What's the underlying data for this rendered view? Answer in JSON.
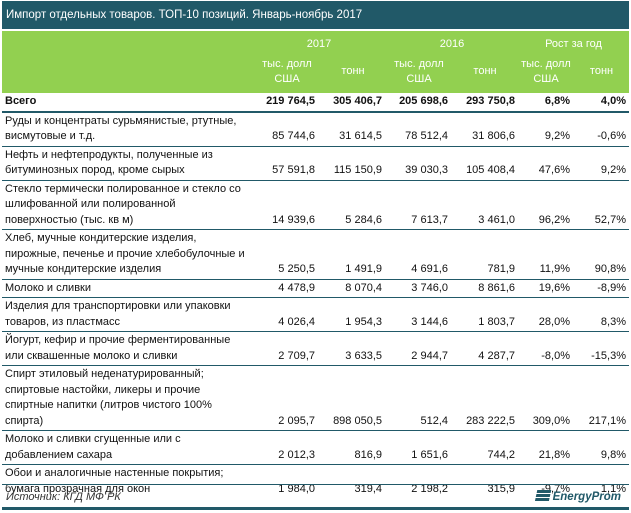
{
  "title": "Импорт отдельных товаров. ТОП-10 позиций. Январь-ноябрь 2017",
  "header": {
    "y2017": "2017",
    "y2016": "2016",
    "growth": "Рост за год",
    "usd": "тыс. долл США",
    "tons": "тонн"
  },
  "total": {
    "label": "Всего",
    "v": [
      "219 764,5",
      "305 406,7",
      "205 698,6",
      "293 750,8",
      "6,8%",
      "4,0%"
    ]
  },
  "rows": [
    {
      "label": "Руды и концентраты сурьмянистые, ртутные, висмутовые и т.д.",
      "v": [
        "85 744,6",
        "31 614,5",
        "78 512,4",
        "31 806,6",
        "9,2%",
        "-0,6%"
      ]
    },
    {
      "label": "Нефть и нефтепродукты, полученные из битуминозных пород, кроме сырых",
      "v": [
        "57 591,8",
        "115 150,9",
        "39 030,3",
        "105 408,4",
        "47,6%",
        "9,2%"
      ]
    },
    {
      "label": "Стекло термически полированное и стекло со шлифованной или полированной поверхностью (тыс. кв м)",
      "v": [
        "14 939,6",
        "5 284,6",
        "7 613,7",
        "3 461,0",
        "96,2%",
        "52,7%"
      ]
    },
    {
      "label": "Хлеб, мучные кондитерские изделия, пирожные, печенье и прочие хлебобулочные и мучные кондитерские изделия",
      "v": [
        "5 250,5",
        "1 491,9",
        "4 691,6",
        "781,9",
        "11,9%",
        "90,8%"
      ]
    },
    {
      "label": "Молоко и сливки",
      "v": [
        "4 478,9",
        "8 070,4",
        "3 746,0",
        "8 861,6",
        "19,6%",
        "-8,9%"
      ]
    },
    {
      "label": "Изделия для транспортировки или упаковки товаров, из пластмасс",
      "v": [
        "4 026,4",
        "1 954,3",
        "3 144,6",
        "1 803,7",
        "28,0%",
        "8,3%"
      ]
    },
    {
      "label": "Йогурт, кефир и прочие ферментированные или сквашенные молоко и сливки",
      "v": [
        "2 709,7",
        "3 633,5",
        "2 944,7",
        "4 287,7",
        "-8,0%",
        "-15,3%"
      ]
    },
    {
      "label": "Спирт этиловый неденатурированный; спиртовые настойки, ликеры и прочие спиртные напитки (литров чистого 100% спирта)",
      "v": [
        "2 095,7",
        "898 050,5",
        "512,4",
        "283 222,5",
        "309,0%",
        "217,1%"
      ]
    },
    {
      "label": "Молоко и сливки сгущенные или с добавлением сахара",
      "v": [
        "2 012,3",
        "816,9",
        "1 651,6",
        "744,2",
        "21,8%",
        "9,8%"
      ]
    },
    {
      "label": "Обои и аналогичные настенные покрытия; бумага прозрачная для окон",
      "v": [
        "1 984,0",
        "319,4",
        "2 198,2",
        "315,9",
        "-9,7%",
        "1,1%"
      ]
    }
  ],
  "footer": {
    "source": "Источник: КГД МФ РК",
    "logo": "EnergyProm"
  }
}
